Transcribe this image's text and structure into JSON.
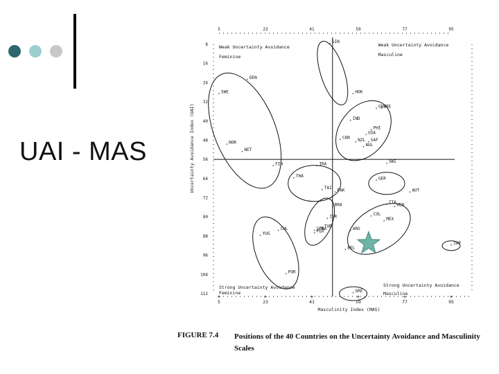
{
  "slide": {
    "title": "UAI - MAS",
    "dot_colors": [
      "#2e6670",
      "#9ccfd0",
      "#c8c8c8"
    ]
  },
  "caption": {
    "figure": "FIGURE 7.4",
    "text": "Positions of the 40 Countries on the Uncertainty Avoidance and Masculinity Scales"
  },
  "chart_data": {
    "type": "scatter",
    "xlabel": "Masculinity Index (MAS)",
    "ylabel": "Uncertainty Avoidance Index (UAI)",
    "x_ticks": [
      "5",
      "23",
      "41",
      "59",
      "77",
      "95"
    ],
    "y_ticks": [
      "8",
      "16",
      "24",
      "32",
      "40",
      "48",
      "56",
      "64",
      "72",
      "80",
      "88",
      "96",
      "104",
      "112"
    ],
    "xlim": [
      5,
      95
    ],
    "ylim": [
      8,
      112
    ],
    "divider": {
      "x": 49,
      "y": 56
    },
    "quadrant_labels": {
      "top_left": [
        "Weak Uncertainty Avoidance",
        "Feminine"
      ],
      "top_right": [
        "Weak Uncertainty Avoidance",
        "Masculine"
      ],
      "bottom_left": [
        "Strong Uncertainty Avoidance",
        "Feminine"
      ],
      "bottom_right": [
        "Strong Uncertainty Avoidance",
        "Masculine"
      ]
    },
    "points": [
      {
        "label": "SIN",
        "x": 48,
        "y": 8
      },
      {
        "label": "DEN",
        "x": 16,
        "y": 23
      },
      {
        "label": "SWE",
        "x": 5,
        "y": 29
      },
      {
        "label": "HOK",
        "x": 57,
        "y": 29
      },
      {
        "label": "GBR",
        "x": 66,
        "y": 35
      },
      {
        "label": "IRE",
        "x": 68,
        "y": 35
      },
      {
        "label": "IND",
        "x": 56,
        "y": 40
      },
      {
        "label": "USA",
        "x": 62,
        "y": 46
      },
      {
        "label": "PHI",
        "x": 64,
        "y": 44
      },
      {
        "label": "SAF",
        "x": 63,
        "y": 49
      },
      {
        "label": "CAN",
        "x": 52,
        "y": 48
      },
      {
        "label": "NZL",
        "x": 58,
        "y": 49
      },
      {
        "label": "AUL",
        "x": 61,
        "y": 51
      },
      {
        "label": "NOR",
        "x": 8,
        "y": 50
      },
      {
        "label": "NET",
        "x": 14,
        "y": 53
      },
      {
        "label": "FIN",
        "x": 26,
        "y": 59
      },
      {
        "label": "IRA",
        "x": 43,
        "y": 59
      },
      {
        "label": "SWI",
        "x": 70,
        "y": 58
      },
      {
        "label": "GER",
        "x": 66,
        "y": 65
      },
      {
        "label": "AUT",
        "x": 79,
        "y": 70
      },
      {
        "label": "THA",
        "x": 34,
        "y": 64
      },
      {
        "label": "TAI",
        "x": 45,
        "y": 69
      },
      {
        "label": "PAK",
        "x": 50,
        "y": 70
      },
      {
        "label": "BRA",
        "x": 49,
        "y": 76
      },
      {
        "label": "ITA",
        "x": 70,
        "y": 75
      },
      {
        "label": "VEN",
        "x": 73,
        "y": 76
      },
      {
        "label": "ISR",
        "x": 47,
        "y": 81
      },
      {
        "label": "COL",
        "x": 64,
        "y": 80
      },
      {
        "label": "MEX",
        "x": 69,
        "y": 82
      },
      {
        "label": "FRA",
        "x": 43,
        "y": 86
      },
      {
        "label": "SPA",
        "x": 42,
        "y": 86
      },
      {
        "label": "ARG",
        "x": 56,
        "y": 86
      },
      {
        "label": "TUR",
        "x": 45,
        "y": 85
      },
      {
        "label": "CHL",
        "x": 28,
        "y": 86
      },
      {
        "label": "YUG",
        "x": 21,
        "y": 88
      },
      {
        "label": "PER",
        "x": 42,
        "y": 87
      },
      {
        "label": "BEL",
        "x": 54,
        "y": 94
      },
      {
        "label": "JAP",
        "x": 95,
        "y": 92
      },
      {
        "label": "POR",
        "x": 31,
        "y": 104
      },
      {
        "label": "GRE",
        "x": 57,
        "y": 112
      }
    ]
  }
}
